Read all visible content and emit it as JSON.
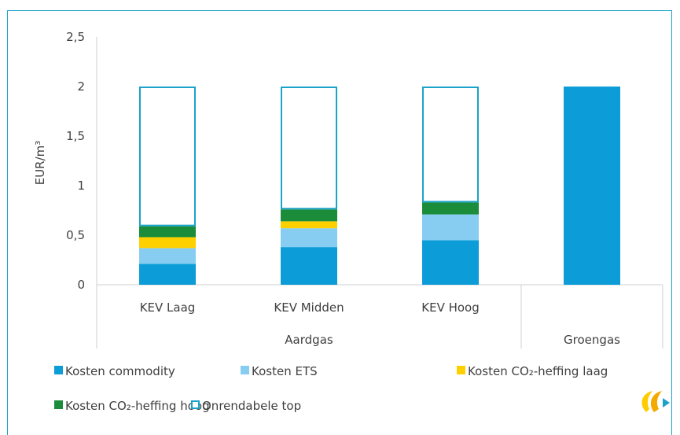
{
  "chart_data": {
    "type": "bar",
    "stacked": true,
    "title": "",
    "ylabel": "EUR/m³",
    "xlabel": "",
    "ylim": [
      0,
      2.5
    ],
    "ytick_labels": [
      "0",
      "0,5",
      "1",
      "1,5",
      "2",
      "2,5"
    ],
    "categories": [
      "KEV Laag",
      "KEV Midden",
      "KEV Hoog",
      ""
    ],
    "groups": [
      {
        "label": "Aardgas",
        "categories": [
          "KEV Laag",
          "KEV Midden",
          "KEV Hoog"
        ]
      },
      {
        "label": "Groengas",
        "categories": [
          ""
        ]
      }
    ],
    "grid": false,
    "legend_position": "bottom",
    "series": [
      {
        "name": "Kosten commodity",
        "color": "#0c9cd8",
        "fill": "solid",
        "values": [
          0.21,
          0.38,
          0.45,
          2.0
        ]
      },
      {
        "name": "Kosten ETS",
        "color": "#87cdf2",
        "fill": "solid",
        "values": [
          0.16,
          0.19,
          0.26,
          0
        ]
      },
      {
        "name": "Kosten CO₂-heffing laag",
        "color": "#ffd000",
        "fill": "solid",
        "values": [
          0.11,
          0.07,
          0,
          0
        ]
      },
      {
        "name": "Kosten CO₂-heffing hoog",
        "color": "#1a8c3a",
        "fill": "solid",
        "values": [
          0.11,
          0.12,
          0.12,
          0
        ]
      },
      {
        "name": "Onrendabele top",
        "color": "#1aa3c9",
        "fill": "outline",
        "values": [
          1.41,
          1.24,
          1.17,
          0
        ]
      }
    ]
  }
}
